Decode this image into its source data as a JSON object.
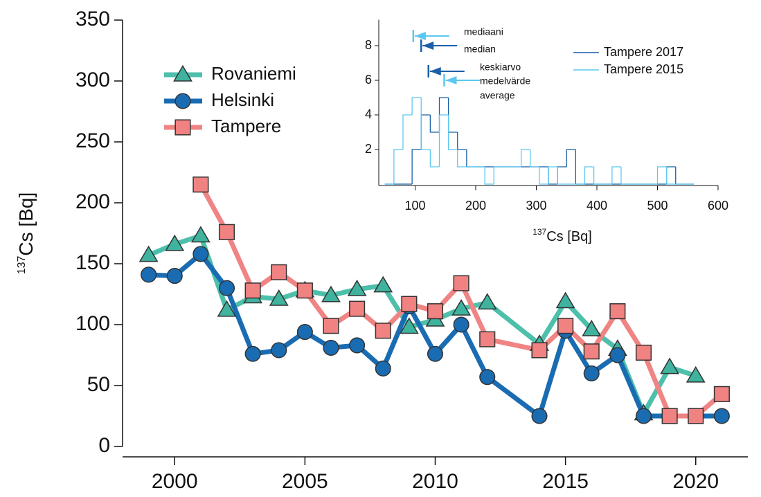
{
  "chart_data": [
    {
      "type": "line",
      "ylabel_sup": "137",
      "ylabel": "Cs [Bq]",
      "xlim": [
        1998,
        2022
      ],
      "xticks": [
        2000,
        2005,
        2010,
        2015,
        2020
      ],
      "ylim": [
        0,
        350
      ],
      "yticks": [
        0,
        50,
        100,
        150,
        200,
        250,
        300,
        350
      ],
      "series": [
        {
          "name": "Rovaniemi",
          "color": "#4dbfaa",
          "marker_color": "#3fb39e",
          "marker": "triangle",
          "x": [
            1999,
            2000,
            2001,
            2002,
            2003,
            2004,
            2005,
            2006,
            2007,
            2008,
            2009,
            2010,
            2011,
            2012,
            2014,
            2015,
            2016,
            2017,
            2018,
            2019,
            2020
          ],
          "values": [
            157,
            166,
            173,
            112,
            123,
            121,
            128,
            124,
            129,
            132,
            98,
            104,
            113,
            118,
            84,
            119,
            96,
            80,
            27,
            65,
            58
          ]
        },
        {
          "name": "Helsinki",
          "color": "#1a6cb2",
          "marker_color": "#1a6cb2",
          "marker": "circle",
          "x": [
            1999,
            2000,
            2001,
            2002,
            2003,
            2004,
            2005,
            2006,
            2007,
            2008,
            2009,
            2010,
            2011,
            2012,
            2014,
            2015,
            2016,
            2017,
            2018,
            2021
          ],
          "values": [
            141,
            140,
            158,
            130,
            76,
            79,
            94,
            81,
            83,
            64,
            115,
            76,
            100,
            57,
            25,
            95,
            60,
            75,
            25,
            25
          ]
        },
        {
          "name": "Tampere",
          "color": "#f08484",
          "marker_color": "#f08282",
          "marker": "square",
          "x": [
            2001,
            2002,
            2003,
            2004,
            2005,
            2006,
            2007,
            2008,
            2009,
            2010,
            2011,
            2012,
            2014,
            2015,
            2016,
            2017,
            2018,
            2019,
            2020,
            2021
          ],
          "values": [
            215,
            176,
            128,
            143,
            128,
            99,
            113,
            95,
            117,
            111,
            134,
            88,
            79,
            99,
            78,
            111,
            77,
            25,
            25,
            43
          ]
        }
      ]
    },
    {
      "type": "histogram",
      "xlabel_sup": "137",
      "xlabel": "Cs [Bq]",
      "xlim": [
        40,
        600
      ],
      "xticks": [
        100,
        200,
        300,
        400,
        500,
        600
      ],
      "ylim": [
        0,
        9.5
      ],
      "yticks": [
        2,
        4,
        6,
        8
      ],
      "bins": [
        50,
        65,
        80,
        95,
        110,
        125,
        140,
        155,
        170,
        185,
        200,
        215,
        230,
        245,
        260,
        275,
        290,
        305,
        320,
        335,
        350,
        365,
        380,
        395,
        410,
        425,
        440,
        455,
        470,
        485,
        500,
        515,
        530,
        545,
        560
      ],
      "annotations": [
        "mediaani",
        "median",
        "keskiarvo",
        "medelvärde",
        "average"
      ],
      "series": [
        {
          "name": "Tampere 2017",
          "color": "#1a5fa8",
          "median": 110,
          "mean": 122,
          "values": [
            0,
            0,
            0,
            2,
            4,
            3,
            5,
            3,
            2,
            1,
            1,
            1,
            1,
            1,
            1,
            1,
            1,
            1,
            0,
            1,
            2,
            0,
            0,
            0,
            0,
            0,
            0,
            0,
            0,
            0,
            0,
            1,
            0,
            0
          ]
        },
        {
          "name": "Tampere 2015",
          "color": "#5bc8f0",
          "median": 97,
          "mean": 148,
          "values": [
            0,
            2,
            4,
            5,
            2,
            1,
            4,
            2,
            1,
            1,
            1,
            0,
            1,
            1,
            1,
            2,
            1,
            0,
            1,
            0,
            0,
            0,
            1,
            0,
            0,
            1,
            0,
            0,
            0,
            0,
            1,
            0,
            0,
            0
          ]
        }
      ]
    }
  ]
}
